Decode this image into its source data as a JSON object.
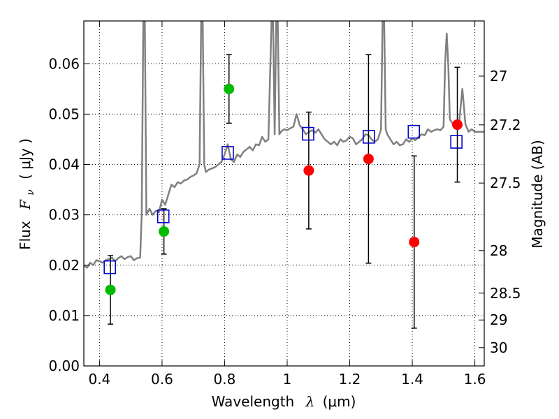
{
  "chart_data": {
    "type": "scatter",
    "title": "",
    "xlabel_main": "Wavelength",
    "xlabel_symbol": "λ",
    "xlabel_units": "(μm)",
    "ylabel_main": "Flux",
    "ylabel_symbol": "F",
    "ylabel_subscript": "ν",
    "ylabel_units": "( μJy )",
    "y2label": "Magnitude (AB)",
    "xlim": [
      0.35,
      1.63
    ],
    "ylim": [
      0.0,
      0.0685
    ],
    "grid": true,
    "x_ticks": [
      0.4,
      0.6,
      0.8,
      1.0,
      1.2,
      1.4,
      1.6
    ],
    "x_tick_labels": [
      "0.4",
      "0.6",
      "0.8",
      "1",
      "1.2",
      "1.4",
      "1.6"
    ],
    "y_ticks": [
      0.0,
      0.01,
      0.02,
      0.03,
      0.04,
      0.05,
      0.06
    ],
    "y_tick_labels": [
      "0.00",
      "0.01",
      "0.02",
      "0.03",
      "0.04",
      "0.05",
      "0.06"
    ],
    "mag_ticks": [
      27,
      27.2,
      27.5,
      28,
      28.5,
      29,
      30
    ],
    "mag_tick_labels": [
      "27",
      "27.2",
      "27.5",
      "28",
      "28.5",
      "29",
      "30"
    ],
    "series": [
      {
        "name": "observed green",
        "color": "#00bb00",
        "points": [
          {
            "x": 0.435,
            "y": 0.0151,
            "err_lo": 0.0068,
            "err_hi": 0.0068
          },
          {
            "x": 0.606,
            "y": 0.0267,
            "err_lo": 0.0045,
            "err_hi": 0.0045
          },
          {
            "x": 0.814,
            "y": 0.055,
            "err_lo": 0.0068,
            "err_hi": 0.0068
          }
        ]
      },
      {
        "name": "observed red",
        "color": "#ff0000",
        "points": [
          {
            "x": 1.069,
            "y": 0.0388,
            "err_lo": 0.0116,
            "err_hi": 0.0116
          },
          {
            "x": 1.26,
            "y": 0.0411,
            "err_lo": 0.0207,
            "err_hi": 0.0207
          },
          {
            "x": 1.406,
            "y": 0.0246,
            "err_lo": 0.0171,
            "err_hi": 0.0171
          },
          {
            "x": 1.544,
            "y": 0.0479,
            "err_lo": 0.0114,
            "err_hi": 0.0114
          }
        ]
      },
      {
        "name": "model photometry",
        "color": "#0000cc",
        "points": [
          {
            "x": 0.433,
            "y": 0.0196
          },
          {
            "x": 0.604,
            "y": 0.0297
          },
          {
            "x": 0.81,
            "y": 0.0423
          },
          {
            "x": 1.067,
            "y": 0.0461
          },
          {
            "x": 1.261,
            "y": 0.0455
          },
          {
            "x": 1.405,
            "y": 0.0465
          },
          {
            "x": 1.541,
            "y": 0.0445
          }
        ]
      },
      {
        "name": "model spectrum",
        "color": "#808080",
        "x": [
          0.35,
          0.36,
          0.37,
          0.38,
          0.39,
          0.4,
          0.41,
          0.42,
          0.43,
          0.44,
          0.45,
          0.46,
          0.47,
          0.48,
          0.49,
          0.5,
          0.51,
          0.52,
          0.53,
          0.535,
          0.54,
          0.545,
          0.55,
          0.56,
          0.57,
          0.58,
          0.59,
          0.6,
          0.61,
          0.62,
          0.63,
          0.64,
          0.65,
          0.66,
          0.67,
          0.68,
          0.69,
          0.7,
          0.71,
          0.72,
          0.725,
          0.73,
          0.735,
          0.74,
          0.75,
          0.76,
          0.77,
          0.78,
          0.79,
          0.8,
          0.81,
          0.82,
          0.83,
          0.84,
          0.85,
          0.86,
          0.87,
          0.88,
          0.89,
          0.9,
          0.91,
          0.92,
          0.93,
          0.94,
          0.95,
          0.955,
          0.96,
          0.965,
          0.97,
          0.975,
          0.98,
          0.99,
          1.0,
          1.01,
          1.02,
          1.03,
          1.04,
          1.05,
          1.06,
          1.07,
          1.08,
          1.09,
          1.1,
          1.11,
          1.12,
          1.13,
          1.14,
          1.15,
          1.16,
          1.17,
          1.18,
          1.19,
          1.2,
          1.21,
          1.22,
          1.23,
          1.24,
          1.25,
          1.26,
          1.27,
          1.28,
          1.29,
          1.3,
          1.305,
          1.31,
          1.315,
          1.32,
          1.33,
          1.34,
          1.35,
          1.36,
          1.37,
          1.38,
          1.39,
          1.4,
          1.41,
          1.42,
          1.43,
          1.44,
          1.45,
          1.46,
          1.47,
          1.48,
          1.49,
          1.5,
          1.505,
          1.51,
          1.515,
          1.52,
          1.53,
          1.54,
          1.55,
          1.56,
          1.57,
          1.58,
          1.59,
          1.6,
          1.61,
          1.62,
          1.63
        ],
        "y": [
          0.02,
          0.0195,
          0.0205,
          0.02,
          0.021,
          0.0208,
          0.0205,
          0.021,
          0.0212,
          0.0215,
          0.0208,
          0.0214,
          0.0218,
          0.0212,
          0.0216,
          0.0218,
          0.021,
          0.0214,
          0.0215,
          0.03,
          0.0685,
          0.0685,
          0.03,
          0.0312,
          0.03,
          0.0308,
          0.0305,
          0.033,
          0.032,
          0.034,
          0.036,
          0.0355,
          0.0365,
          0.0362,
          0.0368,
          0.037,
          0.0375,
          0.0378,
          0.0382,
          0.04,
          0.0685,
          0.0685,
          0.04,
          0.0385,
          0.039,
          0.0392,
          0.0395,
          0.04,
          0.0405,
          0.042,
          0.044,
          0.041,
          0.0405,
          0.042,
          0.0415,
          0.0425,
          0.043,
          0.0435,
          0.0428,
          0.044,
          0.0438,
          0.0455,
          0.0445,
          0.045,
          0.0685,
          0.0685,
          0.046,
          0.0685,
          0.0685,
          0.046,
          0.0465,
          0.047,
          0.0468,
          0.0472,
          0.0475,
          0.05,
          0.0478,
          0.047,
          0.046,
          0.0465,
          0.0468,
          0.0463,
          0.047,
          0.046,
          0.045,
          0.0445,
          0.044,
          0.0445,
          0.0438,
          0.045,
          0.0445,
          0.0448,
          0.0455,
          0.0452,
          0.044,
          0.0445,
          0.045,
          0.046,
          0.0458,
          0.045,
          0.0445,
          0.045,
          0.047,
          0.0685,
          0.0685,
          0.047,
          0.046,
          0.045,
          0.044,
          0.0445,
          0.0438,
          0.044,
          0.045,
          0.0445,
          0.0452,
          0.0448,
          0.0455,
          0.046,
          0.0458,
          0.047,
          0.0465,
          0.0468,
          0.047,
          0.0468,
          0.0475,
          0.06,
          0.066,
          0.06,
          0.049,
          0.048,
          0.047,
          0.0485,
          0.055,
          0.048,
          0.0465,
          0.047,
          0.0465,
          0.0465,
          0.0465,
          0.0465
        ]
      }
    ]
  }
}
